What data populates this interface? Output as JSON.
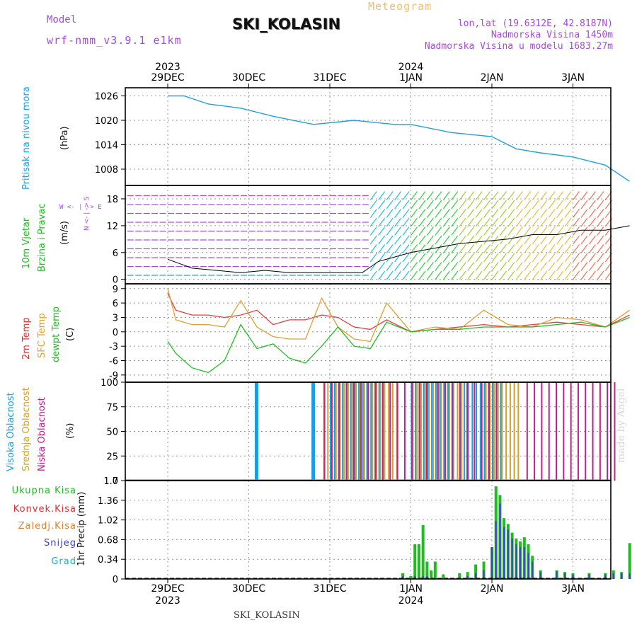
{
  "header": {
    "model_label": "Model",
    "model_version": "wrf-nmm_v3.9.1 e1km",
    "location": "SKI_KOLASIN",
    "product": "Meteogram",
    "coords": "lon,lat (19.6312E, 42.8187N)",
    "elevation": "Nadmorska Visina 1450m",
    "model_elevation": "Nadmorska Visina u modelu 1683.27m"
  },
  "footer": {
    "location": "SKI_KOLASIN",
    "credit": "made by Angel"
  },
  "time_axis": {
    "top_years": [
      {
        "label": "2023",
        "day": 0
      },
      {
        "label": "2024",
        "day": 3
      }
    ],
    "days": [
      "29DEC",
      "30DEC",
      "31DEC",
      "1JAN",
      "2JAN",
      "3JAN"
    ],
    "bottom_years": [
      {
        "label": "2023",
        "day": 0
      },
      {
        "label": "2024",
        "day": 3
      }
    ]
  },
  "panel_labels": {
    "pressure": {
      "name": "Pritisak na nivou mora",
      "unit": "(hPa)"
    },
    "wind": {
      "name1": "10m Vjetar",
      "name2": "Brzina i Pravac",
      "unit": "(m/s)",
      "compass": "W  <- | -> E",
      "compass_vert": "N <- | -> S"
    },
    "temp": {
      "name1": "2m Temp",
      "name2": "SFC Temp",
      "name3": "dewpt Temp",
      "unit": "(C)"
    },
    "cloud": {
      "name1": "Visoka Oblacnost",
      "name2": "Srednja Oblacnost",
      "name3": "Niska Oblacnost",
      "unit": "(%)"
    },
    "precip": {
      "unit": "1hr Precip (mm)",
      "legend": [
        "Ukupna Kisa",
        "Konvek.Kisa",
        "Zaledj.Kisa",
        "Snijeg",
        "Grad"
      ]
    }
  },
  "colors": {
    "pressure": "#1fa0e0",
    "t2m": "#e04040",
    "tsfc": "#e0a030",
    "dewpt": "#20c020",
    "cloud_high": "#1a9ee0",
    "cloud_mid": "#d0a030",
    "cloud_low": "#c0208a",
    "rain_total": "#22bb22",
    "snow": "#4040d0",
    "conv": "#e03030",
    "frz": "#f07020",
    "grad": "#20c0c0",
    "label_green": "#22bb22",
    "label_red": "#e03030",
    "label_orange": "#e08030",
    "label_blue": "#4040d0",
    "label_cyan": "#20b0b0",
    "label_purple": "#a64ae0",
    "label_magenta": "#c0208a"
  },
  "chart_data": [
    {
      "type": "line",
      "title": "Pritisak na nivou mora",
      "ylabel": "(hPa)",
      "ylim": [
        1004,
        1028
      ],
      "yticks": [
        1008,
        1014,
        1020,
        1026
      ],
      "x_days": [
        0,
        0.2,
        0.5,
        0.9,
        1.3,
        1.8,
        2.3,
        2.8,
        3.0,
        3.5,
        4.0,
        4.3,
        4.6,
        5.0,
        5.4,
        5.7
      ],
      "series": [
        {
          "name": "",
          "values": [
            1026,
            1026,
            1024,
            1023,
            1021,
            1019,
            1020,
            1019,
            1019,
            1017,
            1016,
            1013,
            1012,
            1011,
            1009,
            1005
          ]
        }
      ]
    },
    {
      "type": "line",
      "title": "10m Vjetar Brzina i Pravac",
      "ylabel": "(m/s)",
      "ylim": [
        -1,
        21
      ],
      "yticks": [
        0,
        6,
        12,
        18
      ],
      "x_days": [
        0,
        0.3,
        0.6,
        0.9,
        1.2,
        1.5,
        1.8,
        2.1,
        2.4,
        2.6,
        2.8,
        3.0,
        3.3,
        3.6,
        3.9,
        4.2,
        4.5,
        4.8,
        5.1,
        5.4,
        5.7
      ],
      "series": [
        {
          "name": "",
          "values": [
            4.5,
            2.5,
            2,
            1.5,
            2,
            1.5,
            1.5,
            1.5,
            1.5,
            4,
            5,
            6,
            7,
            8,
            8.5,
            9,
            10,
            10,
            11,
            11,
            12
          ]
        }
      ]
    },
    {
      "type": "line",
      "title": "2m Temp / SFC Temp / dewpt Temp",
      "ylabel": "(C)",
      "ylim": [
        -10.5,
        10
      ],
      "yticks": [
        -9,
        -6,
        -3,
        0,
        3,
        6,
        9
      ],
      "x_days": [
        0,
        0.1,
        0.3,
        0.5,
        0.7,
        0.9,
        1.1,
        1.3,
        1.5,
        1.7,
        1.9,
        2.1,
        2.3,
        2.5,
        2.7,
        3.0,
        3.3,
        3.6,
        3.9,
        4.2,
        4.5,
        4.8,
        5.1,
        5.4,
        5.7
      ],
      "series": [
        {
          "name": "2m Temp",
          "values": [
            8,
            4.5,
            3.5,
            3.5,
            3,
            3.5,
            4.5,
            1.5,
            2.5,
            2.5,
            3.5,
            3,
            1,
            0.5,
            2.5,
            0,
            0.5,
            1,
            1.5,
            1,
            1.5,
            2,
            1.5,
            1,
            3.5
          ]
        },
        {
          "name": "SFC Temp",
          "values": [
            9,
            2.5,
            1.5,
            1.5,
            1,
            6.5,
            1,
            -1,
            -1.5,
            -1.5,
            7,
            1,
            -1.5,
            -2,
            6,
            0,
            1,
            0.5,
            4.5,
            1.5,
            1,
            3,
            2.5,
            1,
            4.5
          ]
        },
        {
          "name": "dewpt Temp",
          "values": [
            -2,
            -4.5,
            -7.5,
            -8.5,
            -6,
            1.5,
            -3.5,
            -2.5,
            -5.5,
            -6.5,
            -3,
            1,
            -3,
            -3.5,
            2,
            0,
            0.5,
            0.5,
            1,
            1,
            1,
            1.5,
            2,
            1,
            3
          ]
        }
      ]
    },
    {
      "type": "bar",
      "title": "Visoka / Srednja / Niska Oblacnost",
      "ylabel": "(%)",
      "ylim": [
        0,
        100
      ],
      "yticks": [
        0,
        25,
        50,
        75,
        100
      ],
      "high_cloud_days": [
        1.1,
        1.8
      ],
      "high_cloud_dense": [
        [
          2.0,
          2.6
        ],
        [
          3.0,
          3.5
        ],
        [
          3.6,
          4.1
        ]
      ],
      "mid_cloud_dense": [
        [
          1.9,
          2.8
        ],
        [
          3.0,
          3.6
        ],
        [
          3.9,
          4.3
        ]
      ],
      "low_cloud_dense": [
        [
          1.9,
          3.2
        ],
        [
          3.3,
          4.1
        ],
        [
          4.4,
          5.5
        ]
      ]
    },
    {
      "type": "bar",
      "title": "1hr Precip",
      "ylabel": "1hr Precip (mm)",
      "ylim": [
        0,
        1.7
      ],
      "yticks": [
        0,
        0.34,
        0.68,
        1.02,
        1.36,
        1.7
      ],
      "x_days": [
        2.9,
        3.0,
        3.05,
        3.1,
        3.15,
        3.2,
        3.25,
        3.3,
        3.4,
        3.6,
        3.7,
        3.8,
        3.9,
        4.0,
        4.05,
        4.1,
        4.15,
        4.2,
        4.25,
        4.3,
        4.35,
        4.4,
        4.45,
        4.5,
        4.6,
        4.8,
        4.9,
        5.0,
        5.2,
        5.4,
        5.5,
        5.6,
        5.7
      ],
      "series": [
        {
          "name": "Ukupna Kisa",
          "values": [
            0.1,
            0.05,
            0.6,
            0.6,
            0.93,
            0.3,
            0.15,
            0.3,
            0.08,
            0.1,
            0.12,
            0.25,
            0.3,
            0.55,
            1.6,
            1.45,
            1.05,
            0.95,
            0.8,
            0.7,
            0.65,
            0.72,
            0.6,
            0.4,
            0.15,
            0.15,
            0.12,
            0.1,
            0.1,
            0.1,
            0.15,
            0.12,
            0.62
          ]
        },
        {
          "name": "Snijeg",
          "values": [
            0.05,
            0.0,
            0.05,
            0.0,
            0.05,
            0.05,
            0.0,
            0.0,
            0.0,
            0.0,
            0.05,
            0.1,
            0.15,
            0.55,
            1.0,
            1.3,
            0.9,
            0.85,
            0.7,
            0.6,
            0.55,
            0.55,
            0.45,
            0.3,
            0.12,
            0.13,
            0.1,
            0.08,
            0.08,
            0.08,
            0.1,
            0.1,
            0.1
          ]
        }
      ]
    }
  ]
}
